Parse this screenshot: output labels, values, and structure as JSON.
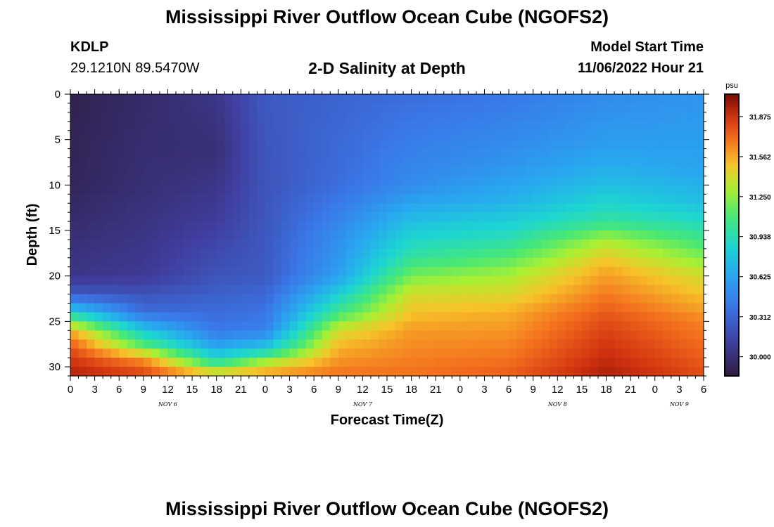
{
  "page": {
    "title": "Mississippi River Outflow Ocean Cube (NGOFS2)",
    "title_repeat": "Mississippi River Outflow Ocean Cube (NGOFS2)",
    "station_id": "KDLP",
    "station_coords": "29.1210N  89.5470W",
    "subtitle": "2-D Salinity at Depth",
    "model_start_label": "Model Start Time",
    "model_start_value": "11/06/2022 Hour 21"
  },
  "chart_data": {
    "type": "heatmap",
    "title": "2-D Salinity at Depth",
    "xlabel": "Forecast Time(Z)",
    "ylabel": "Depth (ft)",
    "y_ticks": [
      0,
      5,
      10,
      15,
      20,
      25,
      30
    ],
    "ylim": [
      0,
      31
    ],
    "y_inverted": true,
    "x_hours": [
      0,
      3,
      6,
      9,
      12,
      15,
      18,
      21,
      0,
      3,
      6,
      9,
      12,
      15,
      18,
      21,
      0,
      3,
      6,
      9,
      12,
      15,
      18,
      21,
      0,
      3,
      6
    ],
    "x_day_labels": [
      {
        "label": "NOV 6",
        "hour_index": 4
      },
      {
        "label": "NOV 7",
        "hour_index": 12
      },
      {
        "label": "NOV 8",
        "hour_index": 20
      },
      {
        "label": "NOV 9",
        "hour_index": 25
      }
    ],
    "colorbar": {
      "unit": "psu",
      "ticks": [
        "31.875",
        "31.562",
        "31.250",
        "30.938",
        "30.625",
        "30.312",
        "30.000"
      ],
      "range": [
        29.85,
        32.05
      ]
    },
    "salinity_profiles": [
      {
        "hour": 0,
        "depth_ft": [
          0,
          10,
          20,
          22,
          24,
          26,
          28,
          31
        ],
        "psu": [
          29.9,
          29.93,
          30.05,
          30.25,
          30.85,
          31.55,
          31.8,
          31.95
        ]
      },
      {
        "hour": 9,
        "depth_ft": [
          0,
          10,
          20,
          24,
          26,
          28,
          29,
          31
        ],
        "psu": [
          29.97,
          30.0,
          30.08,
          30.35,
          30.8,
          31.2,
          31.6,
          31.85
        ]
      },
      {
        "hour": 18,
        "depth_ft": [
          0,
          6,
          14,
          20,
          26,
          28,
          29.5,
          31
        ],
        "psu": [
          30.05,
          30.0,
          30.1,
          30.22,
          30.4,
          30.65,
          31.0,
          31.55
        ]
      },
      {
        "hour": 24,
        "depth_ft": [
          0,
          10,
          20,
          26,
          28,
          29.5,
          31
        ],
        "psu": [
          30.25,
          30.22,
          30.25,
          30.45,
          30.8,
          31.3,
          31.65
        ]
      },
      {
        "hour": 33,
        "depth_ft": [
          0,
          10,
          15,
          20,
          24,
          26,
          28,
          31
        ],
        "psu": [
          30.3,
          30.35,
          30.5,
          30.6,
          31.05,
          31.4,
          31.55,
          31.7
        ]
      },
      {
        "hour": 42,
        "depth_ft": [
          0,
          10,
          14,
          18,
          22,
          26,
          31
        ],
        "psu": [
          30.35,
          30.5,
          30.75,
          31.0,
          31.4,
          31.6,
          31.7
        ]
      },
      {
        "hour": 54,
        "depth_ft": [
          0,
          8,
          12,
          16,
          20,
          24,
          31
        ],
        "psu": [
          30.4,
          30.55,
          30.7,
          30.95,
          31.3,
          31.55,
          31.75
        ]
      },
      {
        "hour": 66,
        "depth_ft": [
          0,
          6,
          10,
          14,
          16,
          19,
          25,
          31
        ],
        "psu": [
          30.5,
          30.6,
          30.75,
          31.0,
          31.3,
          31.55,
          31.8,
          31.95
        ]
      },
      {
        "hour": 78,
        "depth_ft": [
          0,
          8,
          12,
          16,
          20,
          25,
          31
        ],
        "psu": [
          30.55,
          30.62,
          30.75,
          31.05,
          31.4,
          31.65,
          31.8
        ]
      }
    ]
  }
}
